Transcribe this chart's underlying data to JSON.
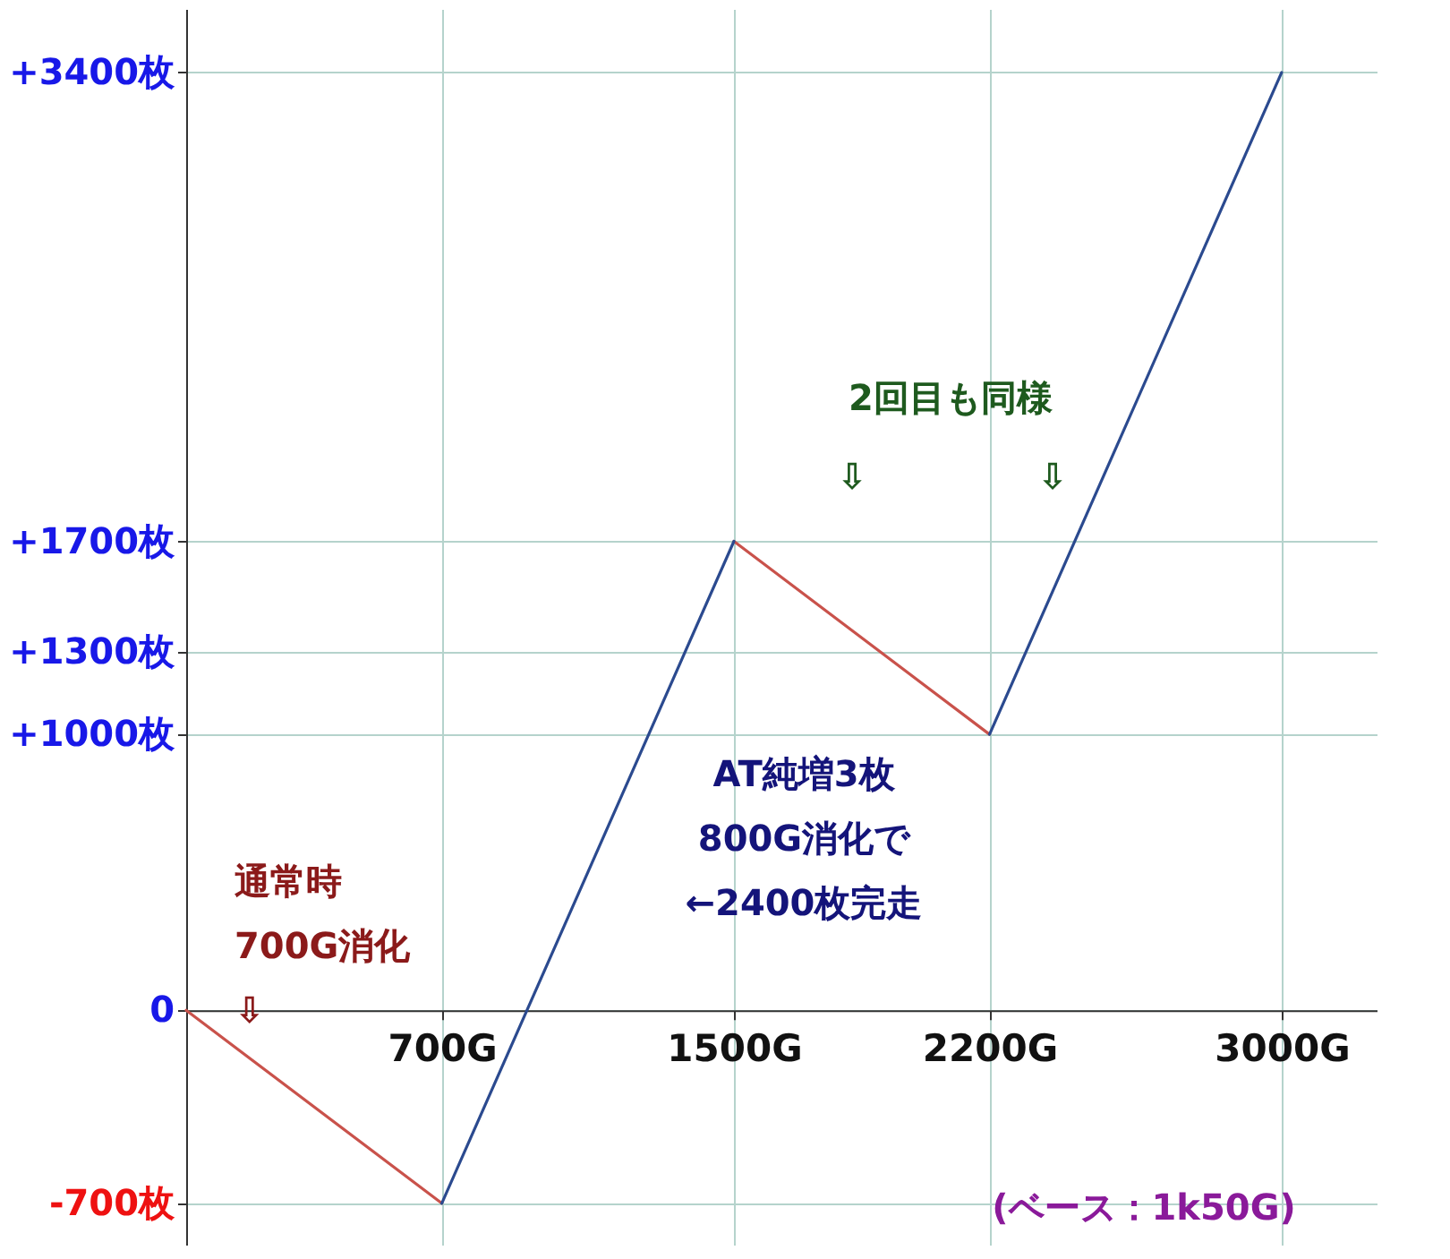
{
  "chart_data": {
    "type": "line",
    "xlim": [
      0,
      3260
    ],
    "ylim": [
      -850,
      3630
    ],
    "xticks": [
      {
        "value": 700,
        "label": "700G"
      },
      {
        "value": 1500,
        "label": "1500G"
      },
      {
        "value": 2200,
        "label": "2200G"
      },
      {
        "value": 3000,
        "label": "3000G"
      }
    ],
    "yticks": [
      {
        "value": -700,
        "label": "-700枚"
      },
      {
        "value": 0,
        "label": "0"
      },
      {
        "value": 1000,
        "label": "+1000枚"
      },
      {
        "value": 1300,
        "label": "+1300枚"
      },
      {
        "value": 1700,
        "label": "+1700枚"
      },
      {
        "value": 3400,
        "label": "+3400枚"
      }
    ],
    "grid": true,
    "series": [
      {
        "color": "#c9524b",
        "x": [
          0,
          700,
          1100,
          1500,
          2200
        ],
        "values": [
          0,
          -700,
          null,
          1700,
          1000
        ]
      },
      {
        "color": "#2b4a8f",
        "x": [
          700,
          1500,
          1850,
          2200,
          3000
        ],
        "values": [
          -700,
          1700,
          null,
          1000,
          3400
        ]
      }
    ],
    "annotations": [
      "通常時\n700G消化\n⇩",
      "AT純増3枚\n800G消化で\n←2400枚完走",
      "2回目も同様",
      "⇩",
      "⇩",
      "(ベース：1k50G)"
    ]
  }
}
